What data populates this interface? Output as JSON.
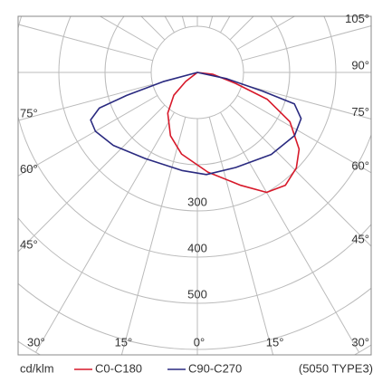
{
  "chart_data": {
    "type": "polar",
    "rlim": [
      0,
      700
    ],
    "rticks": [
      300,
      400,
      500
    ],
    "angle_ticks": [
      {
        "value": -75,
        "label": "75°"
      },
      {
        "value": -60,
        "label": "60°"
      },
      {
        "value": -45,
        "label": "45°"
      },
      {
        "value": -30,
        "label": "30°"
      },
      {
        "value": -15,
        "label": "15°"
      },
      {
        "value": 0,
        "label": "0°"
      },
      {
        "value": 15,
        "label": "15°"
      },
      {
        "value": 30,
        "label": "30°"
      },
      {
        "value": 45,
        "label": "45°"
      },
      {
        "value": 60,
        "label": "60°"
      },
      {
        "value": 75,
        "label": "75°"
      },
      {
        "value": 90,
        "label": "90°"
      },
      {
        "value": 105,
        "label": "105°"
      }
    ],
    "unit_label": "cd/klm",
    "note": "(5050 TYPE3)",
    "series": [
      {
        "name": "C0-C180",
        "color": "#d7192a",
        "angles": [
          -60,
          -52,
          -46,
          -36,
          -23,
          -11,
          6,
          21,
          30,
          38,
          46,
          53,
          62,
          69,
          74,
          83,
          90
        ],
        "values": [
          0,
          32,
          71,
          109,
          149,
          180,
          217,
          262,
          300,
          310,
          298,
          276,
          227,
          162,
          86,
          34,
          0
        ]
      },
      {
        "name": "C90-C270",
        "color": "#2a2a80",
        "angles": [
          -80,
          -75,
          -72,
          -70,
          -66,
          -60,
          -49,
          -31,
          -9,
          5,
          22,
          42,
          57,
          66,
          72,
          74,
          78,
          80
        ],
        "values": [
          0,
          77,
          161,
          226,
          253,
          255,
          241,
          218,
          215,
          222,
          222,
          239,
          251,
          246,
          221,
          146,
          64,
          0
        ]
      }
    ]
  }
}
